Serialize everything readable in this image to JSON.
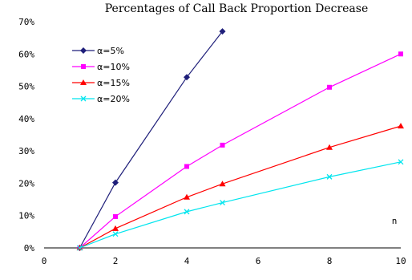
{
  "chart_data": {
    "type": "line",
    "title": "Percentages of Call Back Proportion Decrease",
    "xlabel": "n",
    "ylabel": "",
    "xlim": [
      0,
      10
    ],
    "ylim": [
      0,
      70
    ],
    "x_ticks": [
      "0",
      "2",
      "4",
      "6",
      "8",
      "10"
    ],
    "y_ticks": [
      "0%",
      "10%",
      "20%",
      "30%",
      "40%",
      "50%",
      "60%",
      "70%"
    ],
    "grid": false,
    "legend_position": "top-left",
    "series": [
      {
        "name": "α=5%",
        "color": "#1f1f7a",
        "marker": "diamond",
        "points": [
          [
            1,
            0
          ],
          [
            2,
            20.2
          ],
          [
            4,
            52.8
          ],
          [
            5,
            67
          ]
        ]
      },
      {
        "name": "α=10%",
        "color": "#ff00ff",
        "marker": "square",
        "points": [
          [
            1,
            0
          ],
          [
            2,
            9.7
          ],
          [
            4,
            25.2
          ],
          [
            5,
            31.8
          ],
          [
            8,
            49.7
          ],
          [
            10,
            60
          ]
        ]
      },
      {
        "name": "α=15%",
        "color": "#ff0000",
        "marker": "triangle",
        "points": [
          [
            1,
            0
          ],
          [
            2,
            6
          ],
          [
            4,
            15.7
          ],
          [
            5,
            19.8
          ],
          [
            8,
            31.1
          ],
          [
            10,
            37.7
          ]
        ]
      },
      {
        "name": "α=20%",
        "color": "#00e5ee",
        "marker": "x",
        "points": [
          [
            1,
            0
          ],
          [
            2,
            4.3
          ],
          [
            4,
            11.2
          ],
          [
            5,
            14
          ],
          [
            8,
            22
          ],
          [
            10,
            26.6
          ]
        ]
      }
    ]
  }
}
